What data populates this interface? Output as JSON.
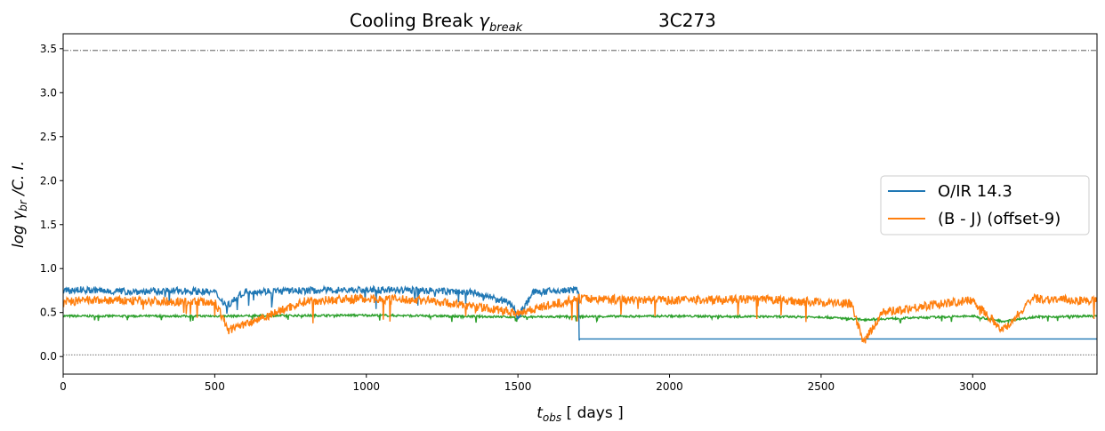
{
  "chart_data": {
    "type": "line",
    "title": "Cooling Break γbreak    3C273",
    "title_main": "Cooling Break ",
    "title_symbol": "γ",
    "title_sub": "break",
    "title_source": "3C273",
    "xlabel_sym": "t",
    "xlabel_sub": "obs",
    "xlabel_rest": " [ days ]",
    "ylabel_pre": "log γ",
    "ylabel_sub": "br",
    "ylabel_post": " /C. I.",
    "xlim": [
      0,
      3410
    ],
    "ylim": [
      -0.2,
      3.67
    ],
    "xticks": [
      0,
      500,
      1000,
      1500,
      2000,
      2500,
      3000
    ],
    "yticks": [
      0.0,
      0.5,
      1.0,
      1.5,
      2.0,
      2.5,
      3.0,
      3.5
    ],
    "hlines": [
      {
        "y": 3.48,
        "style": "dashdot",
        "color": "#444444"
      },
      {
        "y": 0.02,
        "style": "dotted",
        "color": "#444444"
      }
    ],
    "legend_position": "center-right",
    "series": [
      {
        "name": "O/IR 14.3",
        "color": "#1f77b4",
        "x": [
          0,
          50,
          100,
          200,
          300,
          400,
          500,
          540,
          600,
          800,
          1000,
          1200,
          1350,
          1480,
          1500,
          1550,
          1700,
          1702,
          2000,
          2500,
          3000,
          3410
        ],
        "y": [
          0.74,
          0.76,
          0.75,
          0.74,
          0.74,
          0.75,
          0.73,
          0.58,
          0.74,
          0.75,
          0.76,
          0.75,
          0.73,
          0.6,
          0.45,
          0.73,
          0.76,
          0.2,
          0.2,
          0.2,
          0.2,
          0.2
        ],
        "noise": 0.04
      },
      {
        "name": "(B - J)  (offset-9)",
        "color": "#ff7f0e",
        "x": [
          0,
          100,
          300,
          500,
          545,
          800,
          1000,
          1200,
          1500,
          1700,
          2000,
          2300,
          2600,
          2640,
          2700,
          2850,
          3000,
          3100,
          3200,
          3410
        ],
        "y": [
          0.62,
          0.64,
          0.63,
          0.62,
          0.3,
          0.63,
          0.66,
          0.64,
          0.5,
          0.66,
          0.64,
          0.65,
          0.6,
          0.15,
          0.5,
          0.58,
          0.64,
          0.3,
          0.66,
          0.63
        ],
        "noise": 0.05
      },
      {
        "name": "",
        "color": "#2ca02c",
        "x": [
          0,
          500,
          1000,
          1500,
          2000,
          2500,
          2640,
          2800,
          3000,
          3100,
          3200,
          3410
        ],
        "y": [
          0.46,
          0.46,
          0.47,
          0.45,
          0.46,
          0.45,
          0.42,
          0.44,
          0.46,
          0.4,
          0.45,
          0.46
        ],
        "noise": 0.012
      }
    ]
  }
}
